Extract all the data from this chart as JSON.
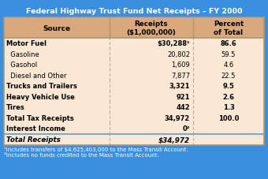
{
  "title": "Federal Highway Trust Fund Net Receipts – FY 2000",
  "header_col1": "Source",
  "header_col2": "Receipts\n($1,000,000)",
  "header_col3": "Percent\nof Total",
  "rows": [
    {
      "source": "Motor Fuel",
      "receipts": "$30,288¹",
      "percent": "86.6",
      "bold": true,
      "indent": false
    },
    {
      "source": "  Gasoline",
      "receipts": "20,802",
      "percent": "59.5",
      "bold": false,
      "indent": true
    },
    {
      "source": "  Gasohol",
      "receipts": "1,609",
      "percent": "4.6",
      "bold": false,
      "indent": true
    },
    {
      "source": "  Diesel and Other",
      "receipts": "7,877",
      "percent": "22.5",
      "bold": false,
      "indent": true
    },
    {
      "source": "Trucks and Trailers",
      "receipts": "3,321",
      "percent": "9.5",
      "bold": true,
      "indent": false
    },
    {
      "source": "Heavy Vehicle Use",
      "receipts": "921",
      "percent": "2.6",
      "bold": true,
      "indent": false
    },
    {
      "source": "Tires",
      "receipts": "442",
      "percent": "1.3",
      "bold": true,
      "indent": false
    },
    {
      "source": "Total Tax Receipts",
      "receipts": "34,972",
      "percent": "100.0",
      "bold": true,
      "indent": false
    },
    {
      "source": "Interest Income",
      "receipts": "0²",
      "percent": "",
      "bold": true,
      "indent": false
    }
  ],
  "total_row": {
    "source": "Total Receipts",
    "receipts": "$34,972",
    "percent": ""
  },
  "footnote1": "¹Includes transfers of $4,625,403,000 to the Mass Transit Account.",
  "footnote2": "²Includes no funds credited to the Mass Transit Account.",
  "bg_outer": "#3a8fde",
  "bg_header": "#D9A87C",
  "bg_data": "#FAE8D5",
  "text_white": "#FFFFFF",
  "text_black": "#000000",
  "divider_color": "#b0956e",
  "sep_line_color": "#7aaad0",
  "outer_border": "#2255aa"
}
